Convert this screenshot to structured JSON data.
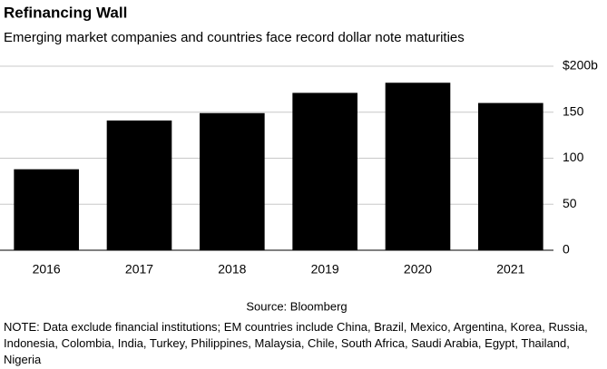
{
  "chart_data": {
    "type": "bar",
    "title": "Refinancing Wall",
    "subtitle": "Emerging market companies and countries face record dollar note maturities",
    "categories": [
      "2016",
      "2017",
      "2018",
      "2019",
      "2020",
      "2021"
    ],
    "values": [
      88,
      141,
      149,
      171,
      182,
      160
    ],
    "color": "#000000",
    "ylim": [
      0,
      200
    ],
    "yticks": [
      0,
      50,
      100,
      150,
      {
        "value": 200,
        "label": "$200b"
      }
    ],
    "grid": true,
    "source": "Source: Bloomberg",
    "note": "NOTE: Data exclude financial institutions; EM countries include China, Brazil, Mexico, Argentina, Korea, Russia, Indonesia, Colombia, India, Turkey, Philippines, Malaysia, Chile, South Africa, Saudi Arabia, Egypt, Thailand, Nigeria"
  }
}
